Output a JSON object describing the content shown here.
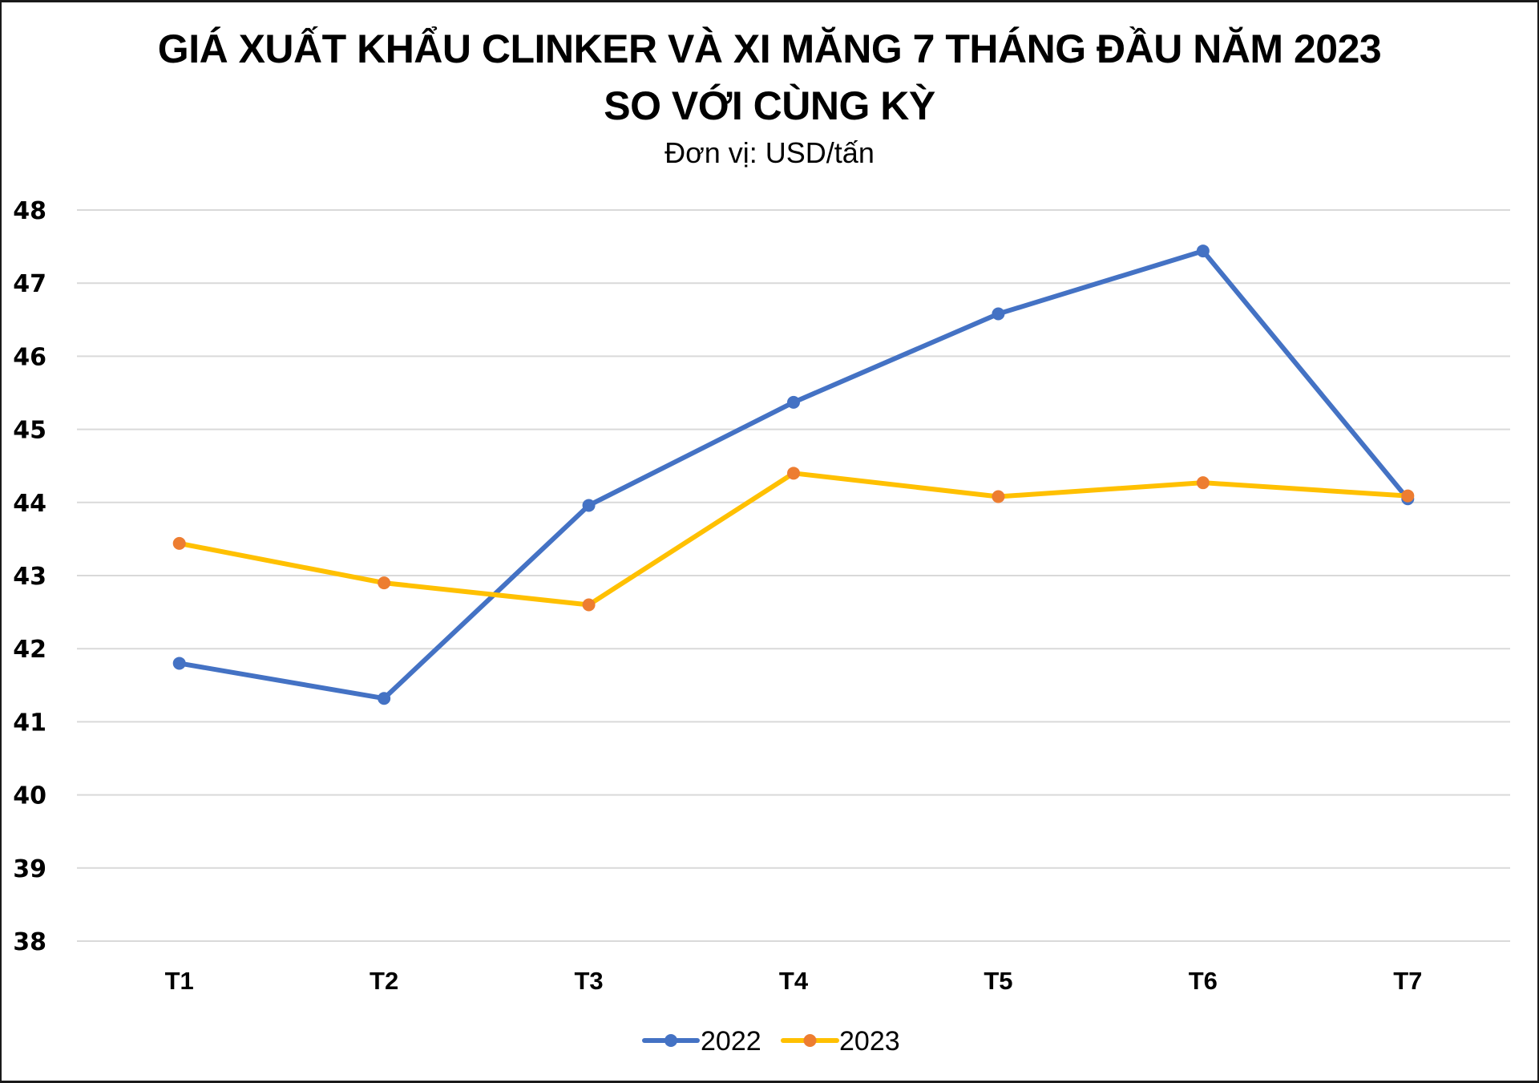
{
  "title_line1": "GIÁ XUẤT KHẨU CLINKER VÀ XI MĂNG 7 THÁNG ĐẦU NĂM 2023",
  "title_line2": "SO VỚI CÙNG KỲ",
  "subtitle": "Đơn vị: USD/tấn",
  "colors": {
    "series_2022_line": "#4472C4",
    "series_2022_marker": "#4472C4",
    "series_2023_line": "#FFC000",
    "series_2023_marker": "#ED7D31",
    "gridline": "#D9D9D9",
    "border": "#1a1a1a"
  },
  "chart_data": {
    "type": "line",
    "title": "GIÁ XUẤT KHẨU CLINKER VÀ XI MĂNG 7 THÁNG ĐẦU NĂM 2023 SO VỚI CÙNG KỲ",
    "subtitle": "Đơn vị: USD/tấn",
    "xlabel": "",
    "ylabel": "",
    "categories": [
      "T1",
      "T2",
      "T3",
      "T4",
      "T5",
      "T6",
      "T7"
    ],
    "series": [
      {
        "name": "2022",
        "values": [
          41.8,
          41.32,
          43.96,
          45.37,
          46.58,
          47.44,
          44.05
        ]
      },
      {
        "name": "2023",
        "values": [
          43.44,
          42.9,
          42.6,
          44.4,
          44.08,
          44.27,
          44.09
        ]
      }
    ],
    "ylim": [
      38,
      48
    ],
    "yticks": [
      48,
      47,
      46,
      45,
      44,
      43,
      42,
      41,
      40,
      39,
      38
    ],
    "grid": true,
    "legend_position": "bottom",
    "markers": true
  }
}
